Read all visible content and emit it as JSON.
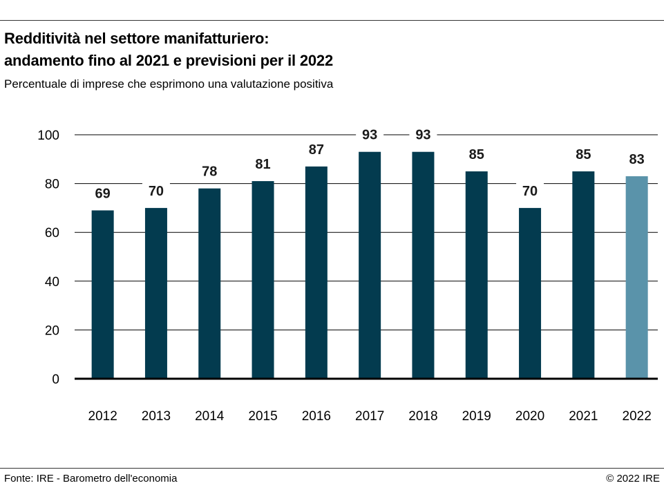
{
  "title_line1": "Redditività nel settore manifatturiero:",
  "title_line2": "andamento fino al 2021 e previsioni per il 2022",
  "subtitle": "Percentuale di imprese che esprimono una valutazione positiva",
  "source": "Fonte: IRE - Barometro dell'economia",
  "copyright": "© 2022 IRE",
  "colors": {
    "bar": "#033b4f",
    "forecast": "#5a93aa",
    "grid": "#000000"
  },
  "chart_data": {
    "type": "bar",
    "categories": [
      "2012",
      "2013",
      "2014",
      "2015",
      "2016",
      "2017",
      "2018",
      "2019",
      "2020",
      "2021",
      "2022"
    ],
    "values": [
      69,
      70,
      78,
      81,
      87,
      93,
      93,
      85,
      70,
      85,
      83
    ],
    "forecast_index": 10,
    "ylim": [
      0,
      100
    ],
    "yticks": [
      0,
      20,
      40,
      60,
      80,
      100
    ],
    "grid": true,
    "data_labels": true
  }
}
